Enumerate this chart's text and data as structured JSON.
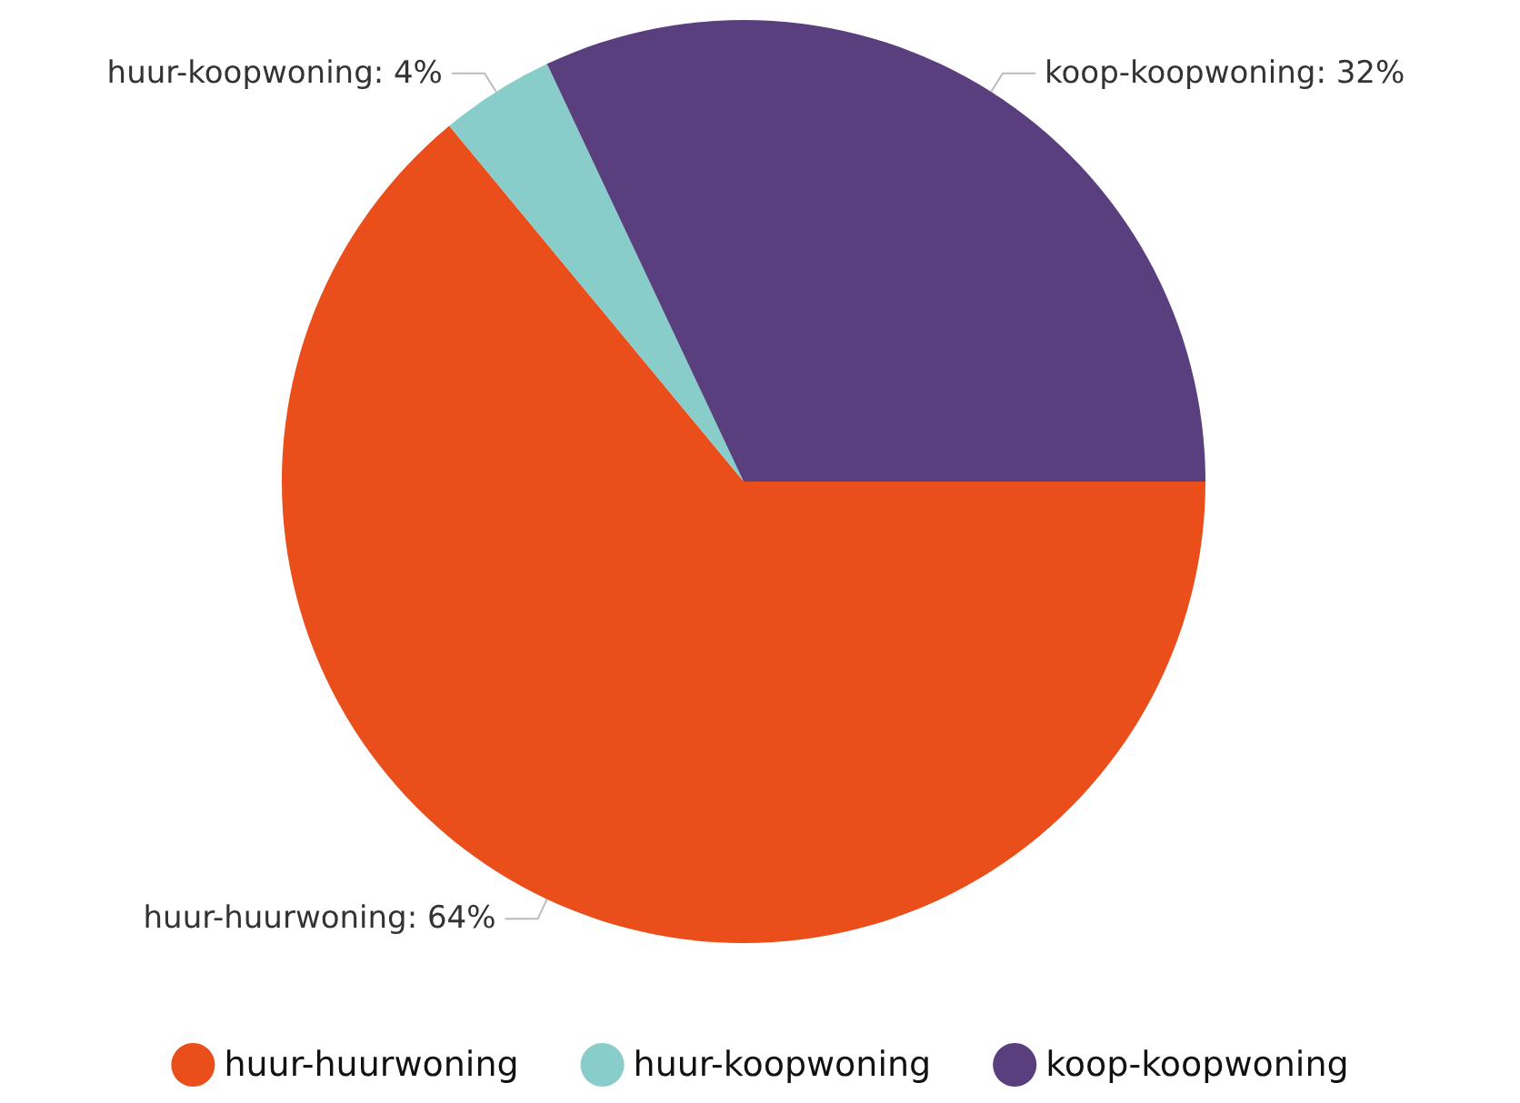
{
  "chart_data": {
    "type": "pie",
    "categories": [
      "huur-huurwoning",
      "huur-koopwoning",
      "koop-koopwoning"
    ],
    "values": [
      64,
      4,
      32
    ],
    "colors": [
      "#e94e1b",
      "#88cdc9",
      "#5a3f7e"
    ],
    "value_labels": [
      "huur-huurwoning: 64%",
      "huur-koopwoning: 4%",
      "koop-koopwoning: 32%"
    ],
    "legend": "bottom"
  }
}
